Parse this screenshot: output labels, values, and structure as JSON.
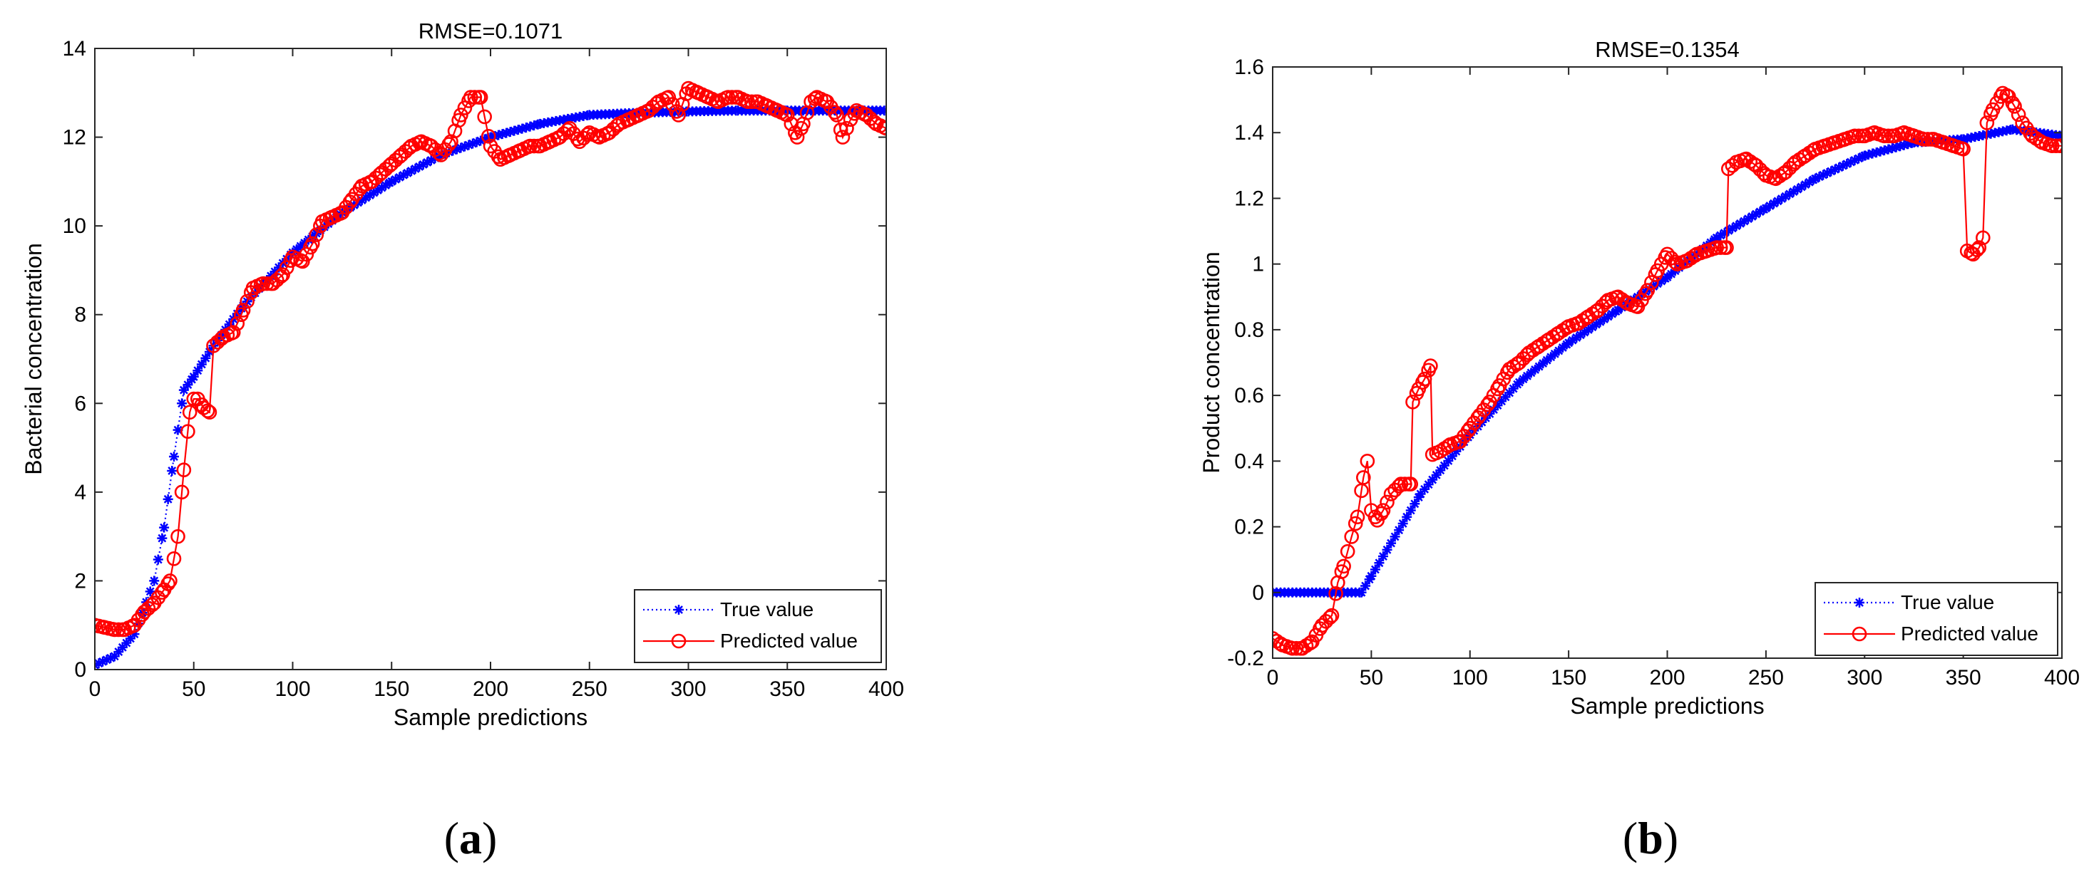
{
  "chart_data": [
    {
      "type": "line",
      "panel": "(a)",
      "panel_letter": "a",
      "title": "RMSE=0.1071",
      "xlabel": "Sample predictions",
      "ylabel": "Bacterial concentration",
      "xlim": [
        0,
        400
      ],
      "ylim": [
        0,
        14
      ],
      "xticks": [
        0,
        50,
        100,
        150,
        200,
        250,
        300,
        350,
        400
      ],
      "yticks": [
        0,
        2,
        4,
        6,
        8,
        10,
        12,
        14
      ],
      "legend_position": "bottom-right",
      "series": [
        {
          "name": "True value",
          "color": "#0000ff",
          "marker": "asterisk",
          "line": "dotted",
          "x": [
            0,
            10,
            20,
            30,
            35,
            40,
            45,
            50,
            60,
            75,
            100,
            125,
            150,
            175,
            200,
            225,
            250,
            275,
            300,
            325,
            350,
            375,
            400
          ],
          "values": [
            0.1,
            0.3,
            0.8,
            2.0,
            3.2,
            4.8,
            6.3,
            6.6,
            7.3,
            8.2,
            9.4,
            10.3,
            11.0,
            11.6,
            12.0,
            12.3,
            12.5,
            12.55,
            12.58,
            12.6,
            12.6,
            12.6,
            12.6
          ]
        },
        {
          "name": "Predicted value",
          "color": "#ff0000",
          "marker": "circle",
          "line": "solid",
          "x": [
            0,
            5,
            10,
            15,
            20,
            25,
            30,
            35,
            38,
            42,
            45,
            48,
            50,
            52,
            55,
            58,
            60,
            65,
            70,
            75,
            80,
            85,
            90,
            95,
            100,
            105,
            110,
            115,
            120,
            125,
            130,
            135,
            140,
            145,
            150,
            155,
            160,
            165,
            170,
            175,
            180,
            185,
            190,
            195,
            200,
            205,
            210,
            215,
            220,
            225,
            230,
            235,
            240,
            245,
            250,
            255,
            260,
            265,
            270,
            275,
            280,
            285,
            290,
            295,
            300,
            305,
            310,
            315,
            320,
            325,
            330,
            335,
            340,
            345,
            350,
            355,
            358,
            362,
            365,
            370,
            375,
            378,
            382,
            385,
            390,
            395,
            400
          ],
          "values": [
            1.0,
            0.95,
            0.9,
            0.9,
            1.0,
            1.3,
            1.5,
            1.8,
            2.0,
            3.0,
            4.5,
            5.8,
            6.1,
            6.1,
            5.9,
            5.8,
            7.3,
            7.5,
            7.6,
            8.1,
            8.6,
            8.7,
            8.7,
            8.9,
            9.3,
            9.2,
            9.6,
            10.1,
            10.2,
            10.3,
            10.6,
            10.9,
            11.0,
            11.2,
            11.4,
            11.6,
            11.8,
            11.9,
            11.8,
            11.6,
            11.9,
            12.5,
            12.9,
            12.9,
            11.8,
            11.5,
            11.6,
            11.7,
            11.8,
            11.8,
            11.9,
            12.0,
            12.2,
            11.9,
            12.1,
            12.0,
            12.1,
            12.3,
            12.4,
            12.5,
            12.6,
            12.8,
            12.9,
            12.5,
            13.1,
            13.0,
            12.9,
            12.8,
            12.9,
            12.9,
            12.8,
            12.8,
            12.7,
            12.6,
            12.5,
            12.0,
            12.3,
            12.8,
            12.9,
            12.8,
            12.5,
            12.0,
            12.4,
            12.6,
            12.5,
            12.3,
            12.2
          ]
        }
      ]
    },
    {
      "type": "line",
      "panel": "(b)",
      "panel_letter": "b",
      "title": "RMSE=0.1354",
      "xlabel": "Sample predictions",
      "ylabel": "Product concentration",
      "xlim": [
        0,
        400
      ],
      "ylim": [
        -0.2,
        1.6
      ],
      "xticks": [
        0,
        50,
        100,
        150,
        200,
        250,
        300,
        350,
        400
      ],
      "yticks": [
        -0.2,
        0,
        0.2,
        0.4,
        0.6,
        0.8,
        1,
        1.2,
        1.4,
        1.6
      ],
      "legend_position": "bottom-right",
      "series": [
        {
          "name": "True value",
          "color": "#0000ff",
          "marker": "asterisk",
          "line": "dotted",
          "x": [
            0,
            20,
            40,
            45,
            50,
            60,
            75,
            100,
            125,
            150,
            175,
            200,
            225,
            250,
            275,
            300,
            325,
            350,
            375,
            400
          ],
          "values": [
            0,
            0,
            0,
            0,
            0.05,
            0.15,
            0.3,
            0.48,
            0.64,
            0.76,
            0.86,
            0.96,
            1.08,
            1.17,
            1.26,
            1.33,
            1.37,
            1.38,
            1.41,
            1.39
          ]
        },
        {
          "name": "Predicted value",
          "color": "#ff0000",
          "marker": "circle",
          "line": "solid",
          "x": [
            0,
            5,
            10,
            15,
            20,
            25,
            30,
            33,
            36,
            40,
            43,
            46,
            48,
            50,
            53,
            56,
            60,
            65,
            70,
            71,
            74,
            77,
            80,
            81,
            85,
            90,
            95,
            100,
            105,
            110,
            115,
            120,
            125,
            130,
            135,
            140,
            145,
            150,
            155,
            160,
            165,
            170,
            175,
            180,
            185,
            190,
            195,
            200,
            205,
            210,
            215,
            220,
            225,
            230,
            231,
            235,
            240,
            245,
            250,
            255,
            260,
            265,
            270,
            275,
            280,
            285,
            290,
            295,
            300,
            305,
            310,
            315,
            320,
            325,
            330,
            335,
            340,
            345,
            350,
            352,
            355,
            358,
            360,
            362,
            365,
            370,
            373,
            376,
            380,
            385,
            390,
            395,
            400
          ],
          "values": [
            -0.14,
            -0.16,
            -0.17,
            -0.17,
            -0.15,
            -0.1,
            -0.07,
            0.03,
            0.08,
            0.17,
            0.23,
            0.35,
            0.4,
            0.25,
            0.22,
            0.25,
            0.3,
            0.33,
            0.33,
            0.58,
            0.62,
            0.65,
            0.69,
            0.42,
            0.43,
            0.45,
            0.46,
            0.5,
            0.54,
            0.58,
            0.63,
            0.68,
            0.7,
            0.73,
            0.75,
            0.77,
            0.79,
            0.81,
            0.82,
            0.84,
            0.86,
            0.89,
            0.9,
            0.88,
            0.87,
            0.92,
            0.98,
            1.03,
            1.0,
            1.01,
            1.03,
            1.04,
            1.05,
            1.05,
            1.29,
            1.31,
            1.32,
            1.3,
            1.27,
            1.26,
            1.28,
            1.31,
            1.33,
            1.35,
            1.36,
            1.37,
            1.38,
            1.39,
            1.39,
            1.4,
            1.39,
            1.39,
            1.4,
            1.39,
            1.38,
            1.38,
            1.37,
            1.36,
            1.35,
            1.04,
            1.03,
            1.05,
            1.08,
            1.43,
            1.47,
            1.52,
            1.51,
            1.48,
            1.43,
            1.39,
            1.37,
            1.36,
            1.36
          ]
        }
      ]
    }
  ]
}
